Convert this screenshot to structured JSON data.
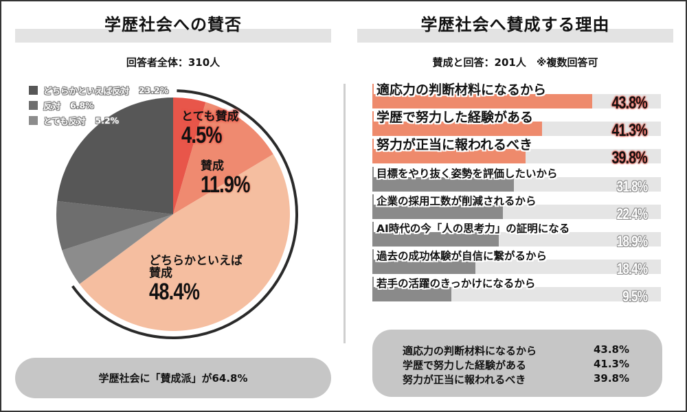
{
  "left_panel": {
    "title": "学歴社会への賛否",
    "subtitle": "回答者全体：310人",
    "legend": [
      {
        "label": "どちらかといえば反対",
        "value": "23.2%",
        "color": "#575757"
      },
      {
        "label": "反対",
        "value": "6.8%",
        "color": "#6e6e6e"
      },
      {
        "label": "とても反対",
        "value": "5.2%",
        "color": "#8c8c8c"
      }
    ],
    "pie_labels": {
      "very_agree": {
        "label": "とても賛成",
        "value": "4.5%"
      },
      "agree": {
        "label": "賛成",
        "value": "11.9%"
      },
      "somewhat_agree": {
        "label_line1": "どちらかといえば",
        "label_line2": "賛成",
        "value": "48.4%"
      }
    },
    "footer": "学歴社会に「賛成派」が64.8%"
  },
  "right_panel": {
    "title": "学歴社会へ賛成する理由",
    "subtitle": "賛成と回答：201人　※複数回答可",
    "bars": [
      {
        "label": "適応力の判断材料になるから",
        "value": "43.8%"
      },
      {
        "label": "学歴で努力した経験がある",
        "value": "41.3%"
      },
      {
        "label": "努力が正当に報われるべき",
        "value": "39.8%"
      },
      {
        "label": "目標をやり抜く姿勢を評価したいから",
        "value": "31.8%"
      },
      {
        "label": "企業の採用工数が削減されるから",
        "value": "22.4%"
      },
      {
        "label": "AI時代の今「人の思考力」の証明になる",
        "value": "18.9%"
      },
      {
        "label": "過去の成功体験が自信に繋がるから",
        "value": "18.4%"
      },
      {
        "label": "若手の活躍のきっかけになるから",
        "value": "9.5%"
      }
    ],
    "summary": [
      {
        "label": "適応力の判断材料になるから",
        "value": "43.8%"
      },
      {
        "label": "学歴で努力した経験がある",
        "value": "41.3%"
      },
      {
        "label": "努力が正当に報われるべき",
        "value": "39.8%"
      }
    ]
  },
  "colors": {
    "very_agree": "#e8564a",
    "agree": "#ef8a70",
    "somewhat_agree": "#f5bea0",
    "somewhat_disagree": "#575757",
    "disagree": "#6e6e6e",
    "very_disagree": "#8c8c8c",
    "top_bar": "#ee8a6c",
    "other_bar": "#8a8a8a",
    "track": "#e5e5e5",
    "pill": "#c6c6c6",
    "title_band": "#e3e3e3"
  },
  "chart_data": [
    {
      "type": "pie",
      "title": "学歴社会への賛否",
      "subtitle": "回答者全体：310人",
      "categories": [
        "とても賛成",
        "賛成",
        "どちらかといえば賛成",
        "とても反対",
        "反対",
        "どちらかといえば反対"
      ],
      "values": [
        4.5,
        11.9,
        48.4,
        5.2,
        6.8,
        23.2
      ],
      "unit": "%",
      "colors": [
        "#e8564a",
        "#ef8a70",
        "#f5bea0",
        "#8c8c8c",
        "#6e6e6e",
        "#575757"
      ],
      "legend_position": "top-left",
      "annotation": "学歴社会に「賛成派」が64.8%"
    },
    {
      "type": "bar",
      "orientation": "horizontal",
      "title": "学歴社会へ賛成する理由",
      "subtitle": "賛成と回答：201人　※複数回答可",
      "categories": [
        "適応力の判断材料になるから",
        "学歴で努力した経験がある",
        "努力が正当に報われるべき",
        "目標をやり抜く姿勢を評価したいから",
        "企業の採用工数が削減されるから",
        "AI時代の今「人の思考力」の証明になる",
        "過去の成功体験が自信に繋がるから",
        "若手の活躍のきっかけになるから"
      ],
      "values": [
        43.8,
        41.3,
        39.8,
        31.8,
        22.4,
        18.9,
        18.4,
        9.5
      ],
      "unit": "%",
      "xlim": [
        0,
        60
      ],
      "grid": false,
      "highlight_top": 3
    }
  ]
}
